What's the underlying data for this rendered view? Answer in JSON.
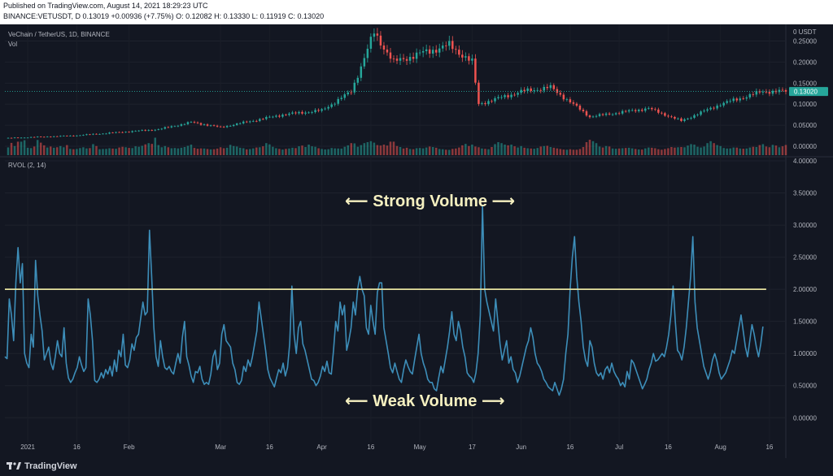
{
  "header": {
    "published": "Published on TradingView.com, August 14, 2021 18:29:23 UTC",
    "ohlc_line": "BINANCE:VETUSDT, D  0.13019  +0.00936 (+7.75%)  O: 0.12082  H: 0.13330  L: 0.11919  C: 0.13020"
  },
  "price_pane": {
    "symbol_label": "VeChain / TetherUS, 1D, BINANCE",
    "vol_label": "Vol",
    "last_price": "0.13020",
    "axis_top_label": "0 USDT",
    "tick_labels": [
      "0.25000",
      "0.20000",
      "0.15000",
      "0.10000",
      "0.05000",
      "0.00000"
    ]
  },
  "rvol_pane": {
    "label": "RVOL (2, 14)",
    "tick_labels": [
      "4.00000",
      "3.50000",
      "3.00000",
      "2.50000",
      "2.00000",
      "1.50000",
      "1.00000",
      "0.50000",
      "0.00000"
    ],
    "threshold": 2.0
  },
  "annotations": {
    "strong": "Strong Volume",
    "weak": "Weak Volume"
  },
  "time_axis": [
    "2021",
    "16",
    "Feb",
    "Mar",
    "16",
    "Apr",
    "16",
    "May",
    "17",
    "Jun",
    "16",
    "Jul",
    "16",
    "Aug",
    "16"
  ],
  "footer": {
    "brand": "TradingView"
  },
  "colors": {
    "up": "#26a69a",
    "down": "#ef5350",
    "rvol_line": "#3d8eb9",
    "threshold": "#e8e3a0",
    "annotation": "#f5f0c0",
    "background": "#131722"
  },
  "chart_data": [
    {
      "type": "candlestick",
      "title": "VeChain / TetherUS, 1D, BINANCE",
      "ylim": [
        0,
        0.28
      ],
      "x_range": [
        "2020-12-25",
        "2021-08-21"
      ],
      "anchors": [
        {
          "date": "2020-12-25",
          "close": 0.019
        },
        {
          "date": "2021-01-15",
          "close": 0.025
        },
        {
          "date": "2021-02-10",
          "close": 0.04
        },
        {
          "date": "2021-02-20",
          "close": 0.057
        },
        {
          "date": "2021-03-01",
          "close": 0.045
        },
        {
          "date": "2021-03-20",
          "close": 0.075
        },
        {
          "date": "2021-04-01",
          "close": 0.085
        },
        {
          "date": "2021-04-10",
          "close": 0.13
        },
        {
          "date": "2021-04-17",
          "close": 0.27
        },
        {
          "date": "2021-04-23",
          "close": 0.2
        },
        {
          "date": "2021-05-01",
          "close": 0.22
        },
        {
          "date": "2021-05-10",
          "close": 0.24
        },
        {
          "date": "2021-05-17",
          "close": 0.2
        },
        {
          "date": "2021-05-19",
          "close": 0.1
        },
        {
          "date": "2021-06-01",
          "close": 0.13
        },
        {
          "date": "2021-06-10",
          "close": 0.14
        },
        {
          "date": "2021-06-22",
          "close": 0.07
        },
        {
          "date": "2021-07-10",
          "close": 0.09
        },
        {
          "date": "2021-07-20",
          "close": 0.06
        },
        {
          "date": "2021-08-01",
          "close": 0.1
        },
        {
          "date": "2021-08-14",
          "close": 0.1302
        }
      ]
    },
    {
      "type": "line",
      "title": "RVOL (2, 14)",
      "ylim": [
        -0.3,
        4.0
      ],
      "threshold": 2.0,
      "series": [
        {
          "values": [
            0.95,
            0.92,
            1.85,
            1.6,
            1.2,
            2.1,
            2.65,
            2.1,
            2.4,
            1.0,
            0.85,
            0.78,
            1.3,
            1.1,
            2.45,
            1.9,
            1.6,
            1.35,
            0.9,
            1.0,
            1.1,
            0.85,
            0.75,
            0.95,
            1.2,
            1.0,
            0.95,
            1.4,
            0.85,
            0.62,
            0.55,
            0.6,
            0.7,
            0.78,
            0.95,
            0.82,
            0.72,
            0.78,
            1.85,
            1.6,
            1.2,
            0.58,
            0.55,
            0.6,
            0.7,
            0.62,
            0.75,
            0.68,
            0.8,
            0.65,
            0.9,
            0.72,
            1.05,
            0.95,
            1.3,
            0.82,
            0.78,
            0.9,
            1.15,
            1.05,
            1.25,
            1.3,
            1.55,
            1.8,
            1.6,
            1.65,
            2.92,
            2.2,
            1.4,
            0.95,
            0.8,
            1.2,
            0.95,
            0.78,
            0.75,
            0.8,
            0.72,
            0.68,
            0.85,
            1.0,
            0.85,
            1.25,
            1.5,
            0.95,
            0.82,
            0.65,
            0.55,
            0.72,
            0.7,
            0.8,
            0.6,
            0.52,
            0.55,
            0.52,
            0.68,
            0.95,
            1.05,
            0.75,
            0.85,
            1.3,
            1.45,
            1.2,
            1.15,
            1.1,
            0.85,
            0.75,
            0.55,
            0.52,
            0.58,
            0.8,
            0.72,
            0.9,
            0.8,
            0.95,
            1.15,
            1.35,
            1.8,
            1.55,
            1.3,
            1.05,
            0.75,
            0.62,
            0.55,
            0.48,
            0.62,
            0.75,
            0.7,
            0.85,
            0.65,
            0.78,
            1.15,
            2.05,
            1.3,
            1.0,
            1.4,
            1.5,
            1.15,
            1.05,
            0.9,
            0.75,
            0.6,
            0.58,
            0.5,
            0.55,
            0.65,
            0.8,
            0.72,
            0.88,
            0.7,
            0.68,
            1.05,
            1.5,
            1.35,
            1.8,
            1.6,
            1.75,
            1.05,
            1.2,
            1.4,
            1.8,
            1.6,
            2.0,
            2.2,
            2.0,
            1.9,
            1.4,
            1.3,
            1.75,
            1.5,
            1.3,
            1.95,
            2.1,
            2.1,
            1.4,
            1.2,
            1.0,
            0.78,
            0.7,
            0.85,
            0.72,
            0.6,
            0.55,
            0.75,
            0.9,
            0.8,
            0.72,
            0.68,
            0.9,
            1.1,
            1.3,
            1.0,
            0.85,
            0.75,
            0.6,
            0.55,
            0.55,
            0.45,
            0.42,
            0.62,
            0.8,
            0.7,
            0.9,
            1.1,
            1.35,
            1.65,
            1.3,
            1.2,
            1.5,
            1.35,
            1.1,
            0.95,
            0.7,
            0.65,
            0.62,
            0.55,
            0.7,
            1.0,
            1.6,
            3.3,
            2.0,
            1.8,
            1.65,
            1.5,
            1.35,
            1.85,
            1.5,
            1.15,
            0.9,
            1.05,
            1.2,
            0.85,
            0.95,
            0.75,
            0.7,
            0.55,
            0.65,
            0.8,
            0.95,
            1.1,
            1.2,
            1.4,
            1.25,
            1.0,
            0.85,
            0.8,
            0.72,
            0.6,
            0.55,
            0.48,
            0.45,
            0.42,
            0.55,
            0.45,
            0.35,
            0.45,
            0.6,
            1.0,
            1.3,
            2.0,
            2.5,
            2.82,
            2.2,
            1.8,
            1.5,
            1.1,
            0.9,
            0.8,
            1.2,
            1.1,
            0.85,
            0.7,
            0.65,
            0.7,
            0.6,
            0.75,
            0.8,
            0.7,
            0.85,
            0.72,
            0.65,
            0.6,
            0.5,
            0.55,
            0.48,
            0.72,
            0.6,
            0.9,
            0.85,
            0.75,
            0.65,
            0.55,
            0.45,
            0.52,
            0.6,
            0.75,
            0.85,
            1.0,
            0.88,
            0.9,
            0.95,
            1.0,
            0.95,
            1.1,
            1.3,
            1.6,
            2.05,
            1.5,
            1.05,
            1.0,
            0.9,
            1.1,
            1.4,
            1.8,
            2.2,
            2.82,
            1.8,
            1.4,
            1.2,
            1.0,
            0.8,
            0.7,
            0.6,
            0.72,
            0.9,
            1.0,
            0.88,
            0.7,
            0.6,
            0.65,
            0.7,
            0.8,
            0.9,
            1.05,
            1.0,
            1.2,
            1.4,
            1.6,
            1.35,
            1.1,
            0.95,
            1.2,
            1.45,
            1.3,
            1.1,
            0.95,
            1.15,
            1.42
          ]
        }
      ]
    }
  ]
}
